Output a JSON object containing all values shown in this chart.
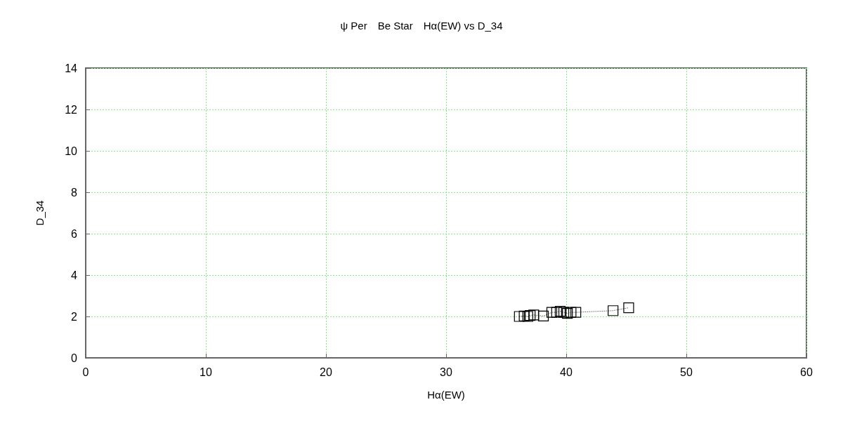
{
  "chart_data": {
    "type": "line",
    "title": "ψ Per　Be Star　Hα(EW) vs D_34",
    "xlabel": "Hα(EW)",
    "ylabel": "D_34",
    "x": [
      36.1,
      36.5,
      36.8,
      37.0,
      37.3,
      38.1,
      38.8,
      39.2,
      39.5,
      39.8,
      40.1,
      40.4,
      40.8,
      43.9,
      45.2
    ],
    "values": [
      2.0,
      2.02,
      2.0,
      2.05,
      2.07,
      2.02,
      2.2,
      2.2,
      2.25,
      2.2,
      2.15,
      2.2,
      2.2,
      2.28,
      2.42
    ],
    "color": "#000000",
    "marker": "square",
    "line_style": "dotted",
    "xlim": [
      0,
      60
    ],
    "xticks": [
      0,
      10,
      20,
      30,
      40,
      50,
      60
    ],
    "ylim": [
      0,
      14
    ],
    "yticks": [
      0,
      2,
      4,
      6,
      8,
      10,
      12,
      14
    ],
    "grid": true
  }
}
